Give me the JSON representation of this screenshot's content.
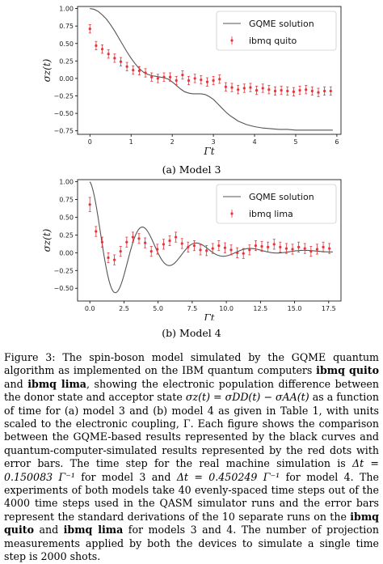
{
  "chart_data": [
    {
      "type": "line",
      "subtitle": "(a) Model 3",
      "xlabel": "Γt",
      "ylabel": "σz(t)",
      "xlim": [
        -0.3,
        6.1
      ],
      "ylim": [
        -0.8,
        1.03
      ],
      "xticks": [
        "0",
        "1",
        "2",
        "3",
        "4",
        "5",
        "6"
      ],
      "yticks": [
        "−0.75",
        "−0.50",
        "−0.25",
        "0.00",
        "0.25",
        "0.50",
        "0.75",
        "1.00"
      ],
      "legend_position": "top-right",
      "series": [
        {
          "name": "GQME solution",
          "kind": "line",
          "color": "#555555",
          "x": [
            0,
            0.1,
            0.2,
            0.3,
            0.4,
            0.5,
            0.6,
            0.7,
            0.8,
            0.9,
            1.0,
            1.1,
            1.2,
            1.3,
            1.4,
            1.5,
            1.6,
            1.7,
            1.8,
            1.9,
            2.0,
            2.1,
            2.2,
            2.3,
            2.4,
            2.5,
            2.6,
            2.7,
            2.8,
            2.9,
            3.0,
            3.1,
            3.2,
            3.3,
            3.4,
            3.5,
            3.6,
            3.8,
            4.0,
            4.2,
            4.4,
            4.6,
            4.8,
            5.0,
            5.2,
            5.4,
            5.6,
            5.8,
            5.9
          ],
          "y": [
            1.0,
            0.99,
            0.96,
            0.91,
            0.85,
            0.77,
            0.68,
            0.58,
            0.48,
            0.38,
            0.29,
            0.21,
            0.14,
            0.09,
            0.06,
            0.04,
            0.03,
            0.02,
            0.01,
            -0.01,
            -0.05,
            -0.1,
            -0.15,
            -0.19,
            -0.21,
            -0.22,
            -0.22,
            -0.22,
            -0.23,
            -0.26,
            -0.3,
            -0.36,
            -0.42,
            -0.48,
            -0.53,
            -0.57,
            -0.61,
            -0.66,
            -0.69,
            -0.71,
            -0.72,
            -0.73,
            -0.73,
            -0.74,
            -0.74,
            -0.74,
            -0.74,
            -0.74,
            -0.74
          ]
        },
        {
          "name": "ibmq quito",
          "kind": "errorbar",
          "color": "#e8333a",
          "x": [
            0.0,
            0.15,
            0.3,
            0.45,
            0.6,
            0.75,
            0.9,
            1.05,
            1.2,
            1.35,
            1.5,
            1.65,
            1.8,
            1.95,
            2.1,
            2.25,
            2.4,
            2.55,
            2.7,
            2.85,
            3.0,
            3.15,
            3.3,
            3.45,
            3.6,
            3.75,
            3.9,
            4.05,
            4.2,
            4.35,
            4.5,
            4.65,
            4.8,
            4.95,
            5.1,
            5.25,
            5.4,
            5.55,
            5.7,
            5.85
          ],
          "y": [
            0.71,
            0.47,
            0.42,
            0.35,
            0.29,
            0.24,
            0.17,
            0.12,
            0.11,
            0.08,
            0.02,
            0.0,
            0.02,
            0.02,
            -0.03,
            0.05,
            -0.03,
            0.0,
            -0.02,
            -0.05,
            -0.03,
            -0.01,
            -0.12,
            -0.13,
            -0.16,
            -0.14,
            -0.13,
            -0.17,
            -0.14,
            -0.16,
            -0.18,
            -0.17,
            -0.18,
            -0.19,
            -0.17,
            -0.16,
            -0.18,
            -0.2,
            -0.18,
            -0.18
          ],
          "err": [
            0.06,
            0.06,
            0.06,
            0.06,
            0.06,
            0.06,
            0.06,
            0.06,
            0.06,
            0.06,
            0.06,
            0.06,
            0.06,
            0.06,
            0.06,
            0.06,
            0.06,
            0.06,
            0.06,
            0.06,
            0.06,
            0.06,
            0.06,
            0.06,
            0.06,
            0.06,
            0.06,
            0.06,
            0.06,
            0.06,
            0.06,
            0.06,
            0.06,
            0.06,
            0.06,
            0.06,
            0.06,
            0.06,
            0.06,
            0.06
          ]
        }
      ]
    },
    {
      "type": "line",
      "subtitle": "(b) Model 4",
      "xlabel": "Γt",
      "ylabel": "σz(t)",
      "xlim": [
        -0.9,
        18.4
      ],
      "ylim": [
        -0.68,
        1.03
      ],
      "xticks": [
        "0.0",
        "2.5",
        "5.0",
        "7.5",
        "10.0",
        "12.5",
        "15.0",
        "17.5"
      ],
      "yticks": [
        "−0.50",
        "−0.25",
        "0.00",
        "0.25",
        "0.50",
        "0.75",
        "1.00"
      ],
      "legend_position": "top-right",
      "series": [
        {
          "name": "GQME solution",
          "kind": "line",
          "color": "#555555",
          "damped_model": {
            "amplitude": 0.98,
            "decay": 0.27,
            "period": 3.95,
            "phase": 0.0,
            "offset": 0.02,
            "t_max": 17.8
          }
        },
        {
          "name": "ibmq lima",
          "kind": "errorbar",
          "color": "#e8333a",
          "x": [
            0.0,
            0.45,
            0.9,
            1.35,
            1.8,
            2.25,
            2.7,
            3.15,
            3.6,
            4.05,
            4.5,
            4.95,
            5.4,
            5.85,
            6.3,
            6.75,
            7.2,
            7.65,
            8.1,
            8.55,
            9.0,
            9.45,
            9.9,
            10.35,
            10.8,
            11.25,
            11.7,
            12.15,
            12.6,
            13.05,
            13.5,
            13.95,
            14.4,
            14.85,
            15.3,
            15.75,
            16.2,
            16.65,
            17.1,
            17.55
          ],
          "y": [
            0.68,
            0.3,
            0.15,
            -0.07,
            -0.1,
            0.02,
            0.15,
            0.22,
            0.2,
            0.14,
            0.02,
            0.05,
            0.12,
            0.17,
            0.22,
            0.13,
            0.08,
            0.1,
            0.04,
            0.03,
            0.06,
            0.1,
            0.07,
            0.04,
            0.0,
            -0.01,
            0.04,
            0.1,
            0.09,
            0.08,
            0.12,
            0.08,
            0.06,
            0.05,
            0.08,
            0.06,
            0.02,
            0.05,
            0.08,
            0.06
          ],
          "err": [
            0.1,
            0.07,
            0.07,
            0.07,
            0.07,
            0.07,
            0.07,
            0.07,
            0.07,
            0.07,
            0.07,
            0.07,
            0.07,
            0.07,
            0.07,
            0.07,
            0.07,
            0.07,
            0.07,
            0.07,
            0.07,
            0.07,
            0.07,
            0.07,
            0.07,
            0.07,
            0.07,
            0.07,
            0.07,
            0.07,
            0.07,
            0.07,
            0.07,
            0.07,
            0.07,
            0.07,
            0.07,
            0.07,
            0.07,
            0.07
          ]
        }
      ]
    }
  ],
  "caption": {
    "t01": "Figure 3: The spin-boson model simulated by the GQME quantum algorithm as implemented on the IBM quantum computers ",
    "b01": "ibmq quito",
    "t02": " and ",
    "b02": "ibmq lima",
    "t03": ", showing the electronic population difference between the donor state and acceptor state ",
    "m01": "σz(t) = σDD(t) − σAA(t)",
    "t04": " as a function of time for (a) model 3 and (b) model 4 as given in Table 1, with units scaled to the electronic coupling, Γ. Each figure shows the comparison between the GQME-based results represented by the black curves and quantum-computer-simulated results represented by the red dots with error bars. The time step for the real machine simulation is ",
    "m02": "Δt = 0.150083 Γ⁻¹",
    "t05": " for model 3 and ",
    "m03": "Δt = 0.450249 Γ⁻¹",
    "t06": " for model 4. The experiments of both models take 40 evenly-spaced time steps out of the 4000 time steps used in the QASM simulator runs and the error bars represent the standard derivations of the 10 separate runs on the ",
    "b03": "ibmq quito",
    "t07": " and ",
    "b04": "ibmq lima",
    "t08": " for models 3 and 4. The number of projection measurements applied by both the devices to simulate a single time step is 2000 shots."
  }
}
